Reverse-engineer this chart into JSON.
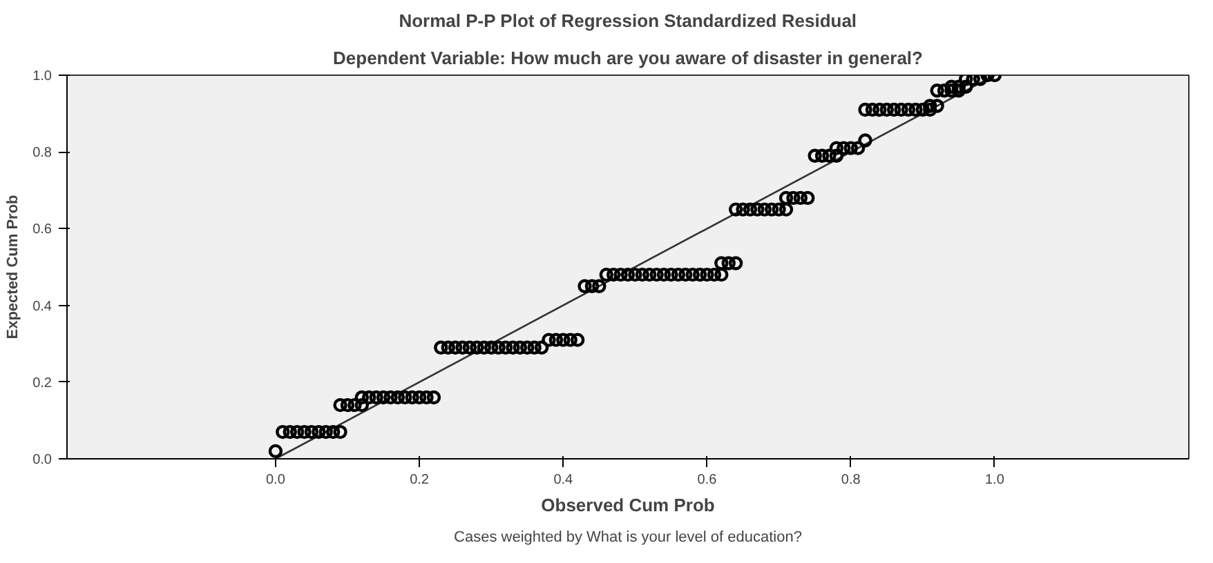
{
  "chart_data": {
    "type": "scatter",
    "title": "Normal P-P Plot of Regression Standardized Residual",
    "subtitle": "Dependent Variable: How much are you aware of disaster in general?",
    "xlabel": "Observed Cum Prob",
    "ylabel": "Expected Cum Prob",
    "annotations": [
      "Cases weighted by What is your level of education?"
    ],
    "xlim": [
      -0.29,
      1.27
    ],
    "ylim": [
      0,
      1
    ],
    "xticks": [
      {
        "value": 0,
        "label": "0.0"
      },
      {
        "value": 0.2,
        "label": "0.2"
      },
      {
        "value": 0.4,
        "label": "0.4"
      },
      {
        "value": 0.6,
        "label": "0.6"
      },
      {
        "value": 0.8,
        "label": "0.8"
      },
      {
        "value": 1,
        "label": "1.0"
      }
    ],
    "yticks": [
      {
        "value": 0,
        "label": "0.0"
      },
      {
        "value": 0.2,
        "label": "0.2"
      },
      {
        "value": 0.4,
        "label": "0.4"
      },
      {
        "value": 0.6,
        "label": "0.6"
      },
      {
        "value": 0.8,
        "label": "0.8"
      },
      {
        "value": 1,
        "label": "1.0"
      }
    ],
    "grid": false,
    "marker": "circle",
    "series": [
      {
        "type": "line",
        "marker": "none",
        "color": "#333333",
        "x": [
          0,
          1
        ],
        "values": [
          0,
          1
        ]
      },
      {
        "color": "#000000",
        "x": [
          0.0,
          0.01,
          0.02,
          0.03,
          0.04,
          0.05,
          0.06,
          0.07,
          0.08,
          0.09,
          0.09,
          0.1,
          0.11,
          0.12,
          0.12,
          0.13,
          0.14,
          0.15,
          0.16,
          0.17,
          0.18,
          0.19,
          0.2,
          0.21,
          0.22,
          0.23,
          0.24,
          0.25,
          0.26,
          0.27,
          0.28,
          0.29,
          0.3,
          0.31,
          0.32,
          0.33,
          0.34,
          0.35,
          0.36,
          0.37,
          0.38,
          0.39,
          0.4,
          0.41,
          0.42,
          0.43,
          0.44,
          0.45,
          0.46,
          0.47,
          0.48,
          0.49,
          0.5,
          0.51,
          0.52,
          0.53,
          0.54,
          0.55,
          0.56,
          0.57,
          0.58,
          0.59,
          0.6,
          0.61,
          0.62,
          0.62,
          0.63,
          0.64,
          0.64,
          0.65,
          0.66,
          0.67,
          0.68,
          0.69,
          0.7,
          0.71,
          0.71,
          0.72,
          0.73,
          0.74,
          0.75,
          0.76,
          0.77,
          0.78,
          0.78,
          0.79,
          0.8,
          0.81,
          0.82,
          0.82,
          0.83,
          0.84,
          0.85,
          0.86,
          0.87,
          0.88,
          0.89,
          0.9,
          0.91,
          0.91,
          0.92,
          0.92,
          0.93,
          0.94,
          0.95,
          0.94,
          0.95,
          0.96,
          0.96,
          0.97,
          0.98,
          0.99,
          1.0
        ],
        "values": [
          0.02,
          0.07,
          0.07,
          0.07,
          0.07,
          0.07,
          0.07,
          0.07,
          0.07,
          0.07,
          0.14,
          0.14,
          0.14,
          0.14,
          0.16,
          0.16,
          0.16,
          0.16,
          0.16,
          0.16,
          0.16,
          0.16,
          0.16,
          0.16,
          0.16,
          0.29,
          0.29,
          0.29,
          0.29,
          0.29,
          0.29,
          0.29,
          0.29,
          0.29,
          0.29,
          0.29,
          0.29,
          0.29,
          0.29,
          0.29,
          0.31,
          0.31,
          0.31,
          0.31,
          0.31,
          0.45,
          0.45,
          0.45,
          0.48,
          0.48,
          0.48,
          0.48,
          0.48,
          0.48,
          0.48,
          0.48,
          0.48,
          0.48,
          0.48,
          0.48,
          0.48,
          0.48,
          0.48,
          0.48,
          0.48,
          0.51,
          0.51,
          0.51,
          0.65,
          0.65,
          0.65,
          0.65,
          0.65,
          0.65,
          0.65,
          0.65,
          0.68,
          0.68,
          0.68,
          0.68,
          0.79,
          0.79,
          0.79,
          0.79,
          0.81,
          0.81,
          0.81,
          0.81,
          0.83,
          0.91,
          0.91,
          0.91,
          0.91,
          0.91,
          0.91,
          0.91,
          0.91,
          0.91,
          0.91,
          0.92,
          0.92,
          0.96,
          0.96,
          0.96,
          0.96,
          0.97,
          0.97,
          0.97,
          0.99,
          0.99,
          0.99,
          1.0,
          1.0
        ]
      }
    ]
  }
}
